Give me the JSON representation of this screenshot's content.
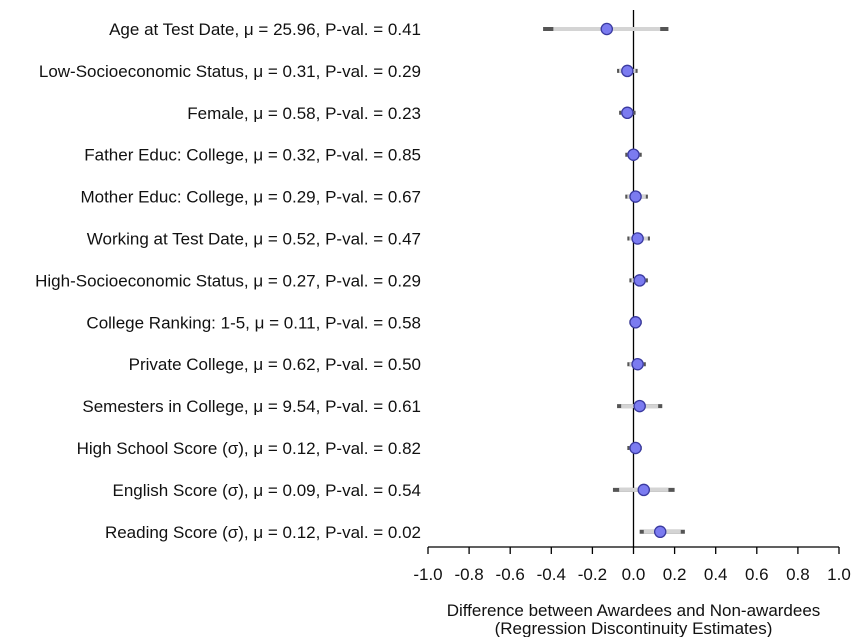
{
  "chart_data": {
    "type": "scatter",
    "title": "",
    "xlabel_line1": "Difference between Awardees and Non-awardees",
    "xlabel_line2": "(Regression Discontinuity Estimates)",
    "ylabel": "",
    "xlim": [
      -1.0,
      1.0
    ],
    "x_ticks": [
      "-1.0",
      "-0.8",
      "-0.6",
      "-0.4",
      "-0.2",
      "0.0",
      "0.2",
      "0.4",
      "0.6",
      "0.8",
      "1.0"
    ],
    "grid": false,
    "reference_line_x": 0.0,
    "point_color": "#7b7bf0",
    "point_edge_color": "#3a3aa0",
    "ci_outer_color": "#555555",
    "ci_inner_color": "#d4d4d4",
    "rows": [
      {
        "label": "Age at Test Date,  μ = 25.96,  P-val. = 0.41",
        "estimate": -0.13,
        "ci_outer": [
          -0.44,
          0.17
        ],
        "ci_inner": [
          -0.39,
          0.13
        ]
      },
      {
        "label": "Low-Socioeconomic Status,  μ = 0.31,  P-val. = 0.29",
        "estimate": -0.03,
        "ci_outer": [
          -0.08,
          0.02
        ],
        "ci_inner": [
          -0.07,
          0.01
        ]
      },
      {
        "label": "Female,  μ = 0.58,  P-val. = 0.23",
        "estimate": -0.03,
        "ci_outer": [
          -0.07,
          0.01
        ],
        "ci_inner": [
          -0.06,
          0.0
        ]
      },
      {
        "label": "Father Educ: College,  μ = 0.32,  P-val. = 0.85",
        "estimate": 0.0,
        "ci_outer": [
          -0.04,
          0.04
        ],
        "ci_inner": [
          -0.03,
          0.03
        ]
      },
      {
        "label": "Mother Educ: College,  μ = 0.29,  P-val. = 0.67",
        "estimate": 0.01,
        "ci_outer": [
          -0.04,
          0.07
        ],
        "ci_inner": [
          -0.03,
          0.06
        ]
      },
      {
        "label": "Working at Test Date,  μ = 0.52,  P-val. = 0.47",
        "estimate": 0.02,
        "ci_outer": [
          -0.03,
          0.08
        ],
        "ci_inner": [
          -0.02,
          0.07
        ]
      },
      {
        "label": "High-Socioeconomic Status,  μ = 0.27,  P-val. = 0.29",
        "estimate": 0.03,
        "ci_outer": [
          -0.02,
          0.07
        ],
        "ci_inner": [
          -0.01,
          0.06
        ]
      },
      {
        "label": "College Ranking: 1-5,  μ = 0.11,  P-val. = 0.58",
        "estimate": 0.01,
        "ci_outer": [
          -0.02,
          0.04
        ],
        "ci_inner": [
          -0.01,
          0.03
        ]
      },
      {
        "label": "Private College,  μ = 0.62,  P-val. = 0.50",
        "estimate": 0.02,
        "ci_outer": [
          -0.03,
          0.06
        ],
        "ci_inner": [
          -0.02,
          0.05
        ]
      },
      {
        "label": "Semesters in College,  μ = 9.54,  P-val. = 0.61",
        "estimate": 0.03,
        "ci_outer": [
          -0.08,
          0.14
        ],
        "ci_inner": [
          -0.06,
          0.12
        ]
      },
      {
        "label": "High School Score (σ),  μ = 0.12,  P-val. = 0.82",
        "estimate": 0.01,
        "ci_outer": [
          -0.03,
          0.04
        ],
        "ci_inner": [
          -0.02,
          0.03
        ]
      },
      {
        "label": "English Score (σ),  μ = 0.09,  P-val. = 0.54",
        "estimate": 0.05,
        "ci_outer": [
          -0.1,
          0.2
        ],
        "ci_inner": [
          -0.07,
          0.17
        ]
      },
      {
        "label": "Reading Score (σ),  μ = 0.12,  P-val. = 0.02",
        "estimate": 0.13,
        "ci_outer": [
          0.03,
          0.25
        ],
        "ci_inner": [
          0.05,
          0.23
        ]
      }
    ]
  }
}
